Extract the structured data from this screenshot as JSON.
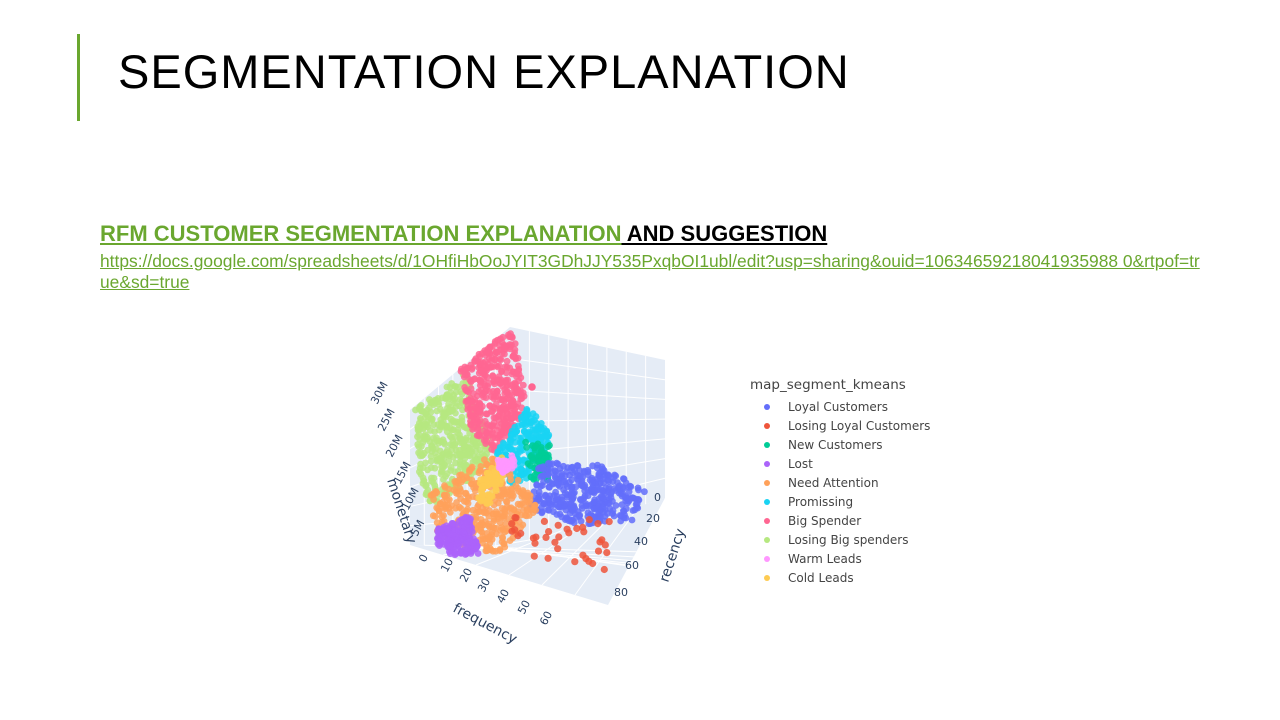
{
  "slide": {
    "title": "SEGMENTATION EXPLANATION",
    "subtitle_link": "RFM CUSTOMER SEGMENTATION EXPLANATION",
    "subtitle_rest": " AND SUGGESTION",
    "url": "https://docs.google.com/spreadsheets/d/1OHfiHbOoJYIT3GDhJJY535PxqbOI1ubl/edit?usp=sharing&ouid=10634659218041935988 0&rtpof=true&sd=true"
  },
  "colors": {
    "accent": "#6aa72f"
  },
  "chart_data": {
    "type": "scatter3d",
    "axes": {
      "monetary": {
        "label": "monetary",
        "ticks": [
          "0",
          "5M",
          "10M",
          "15M",
          "20M",
          "25M",
          "30M"
        ]
      },
      "frequency": {
        "label": "frequency",
        "ticks": [
          "0",
          "10",
          "20",
          "30",
          "40",
          "50",
          "60"
        ]
      },
      "recency": {
        "label": "recency",
        "ticks": [
          "0",
          "20",
          "40",
          "60",
          "80"
        ]
      }
    },
    "legend": {
      "title": "map_segment_kmeans",
      "position": "right",
      "items": [
        {
          "name": "Loyal Customers",
          "color": "#636efa"
        },
        {
          "name": "Losing Loyal Customers",
          "color": "#ef553b"
        },
        {
          "name": "New Customers",
          "color": "#00cc96"
        },
        {
          "name": "Lost",
          "color": "#ab63fa"
        },
        {
          "name": "Need Attention",
          "color": "#ffa15a"
        },
        {
          "name": "Promissing",
          "color": "#19d3f3"
        },
        {
          "name": "Big Spender",
          "color": "#ff6692"
        },
        {
          "name": "Losing Big spenders",
          "color": "#b6e880"
        },
        {
          "name": "Warm Leads",
          "color": "#ff97ff"
        },
        {
          "name": "Cold Leads",
          "color": "#fecb52"
        }
      ]
    }
  }
}
